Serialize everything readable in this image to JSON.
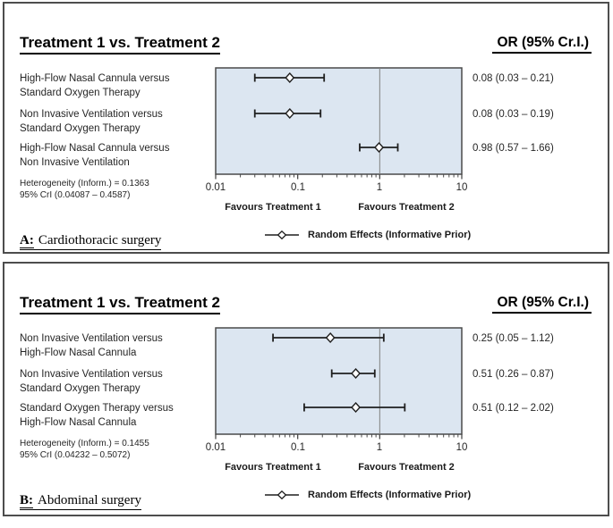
{
  "colors": {
    "plot_bg": "#dce6f1",
    "plot_border": "#4a4a4a",
    "ref_line": "#808080",
    "bar_stroke": "#1f1f1f",
    "marker_fill": "#ffffff",
    "marker_stroke": "#1f1f1f",
    "panel_border": "#4d4d4d",
    "text": "#1a1a1a"
  },
  "chart_data": [
    {
      "type": "scatter",
      "subtype": "forest-plot",
      "title": "Treatment 1 vs. Treatment 2",
      "value_header": "OR (95% Cr.I.)",
      "rows": [
        {
          "label_lines": [
            "High-Flow Nasal Cannula versus",
            "Standard Oxygen Therapy"
          ],
          "or": 0.08,
          "ci": [
            0.03,
            0.21
          ],
          "or_label": "0.08 (0.03 – 0.21)"
        },
        {
          "label_lines": [
            "Non Invasive Ventilation versus",
            "Standard Oxygen Therapy"
          ],
          "or": 0.08,
          "ci": [
            0.03,
            0.19
          ],
          "or_label": "0.08 (0.03 – 0.19)"
        },
        {
          "label_lines": [
            "High-Flow Nasal Cannula versus",
            "Non Invasive Ventilation"
          ],
          "or": 0.98,
          "ci": [
            0.57,
            1.66
          ],
          "or_label": "0.98 (0.57 – 1.66)"
        }
      ],
      "het_lines": [
        "Heterogeneity (Inform.) = 0.1363",
        "95% CrI (0.04087 – 0.4587)"
      ],
      "x_axis": {
        "scale": "log",
        "min": 0.01,
        "max": 10,
        "ticks": [
          0.01,
          0.1,
          1,
          10
        ],
        "tick_labels": [
          "0.01",
          "0.1",
          "1",
          "10"
        ],
        "ref_line": 1,
        "grid": false
      },
      "favours_left": "Favours Treatment 1",
      "favours_right": "Favours Treatment 2",
      "legend": "Random Effects (Informative Prior)",
      "legend_position": "bottom",
      "panel_label": "A:",
      "panel_caption": "Cardiothoracic surgery"
    },
    {
      "type": "scatter",
      "subtype": "forest-plot",
      "title": "Treatment 1 vs. Treatment 2",
      "value_header": "OR (95% Cr.I.)",
      "rows": [
        {
          "label_lines": [
            "Non Invasive Ventilation versus",
            "High-Flow Nasal Cannula"
          ],
          "or": 0.25,
          "ci": [
            0.05,
            1.12
          ],
          "or_label": "0.25 (0.05 – 1.12)"
        },
        {
          "label_lines": [
            "Non Invasive Ventilation versus",
            "Standard Oxygen Therapy"
          ],
          "or": 0.51,
          "ci": [
            0.26,
            0.87
          ],
          "or_label": "0.51 (0.26 – 0.87)"
        },
        {
          "label_lines": [
            "Standard Oxygen Therapy versus",
            "High-Flow Nasal Cannula"
          ],
          "or": 0.51,
          "ci": [
            0.12,
            2.02
          ],
          "or_label": "0.51 (0.12 – 2.02)"
        }
      ],
      "het_lines": [
        "Heterogeneity (Inform.) = 0.1455",
        "95% CrI (0.04232 – 0.5072)"
      ],
      "x_axis": {
        "scale": "log",
        "min": 0.01,
        "max": 10,
        "ticks": [
          0.01,
          0.1,
          1,
          10
        ],
        "tick_labels": [
          "0.01",
          "0.1",
          "1",
          "10"
        ],
        "ref_line": 1,
        "grid": false
      },
      "favours_left": "Favours Treatment 1",
      "favours_right": "Favours Treatment 2",
      "legend": "Random Effects (Informative Prior)",
      "legend_position": "bottom",
      "panel_label": "B:",
      "panel_caption": "Abdominal surgery"
    }
  ]
}
